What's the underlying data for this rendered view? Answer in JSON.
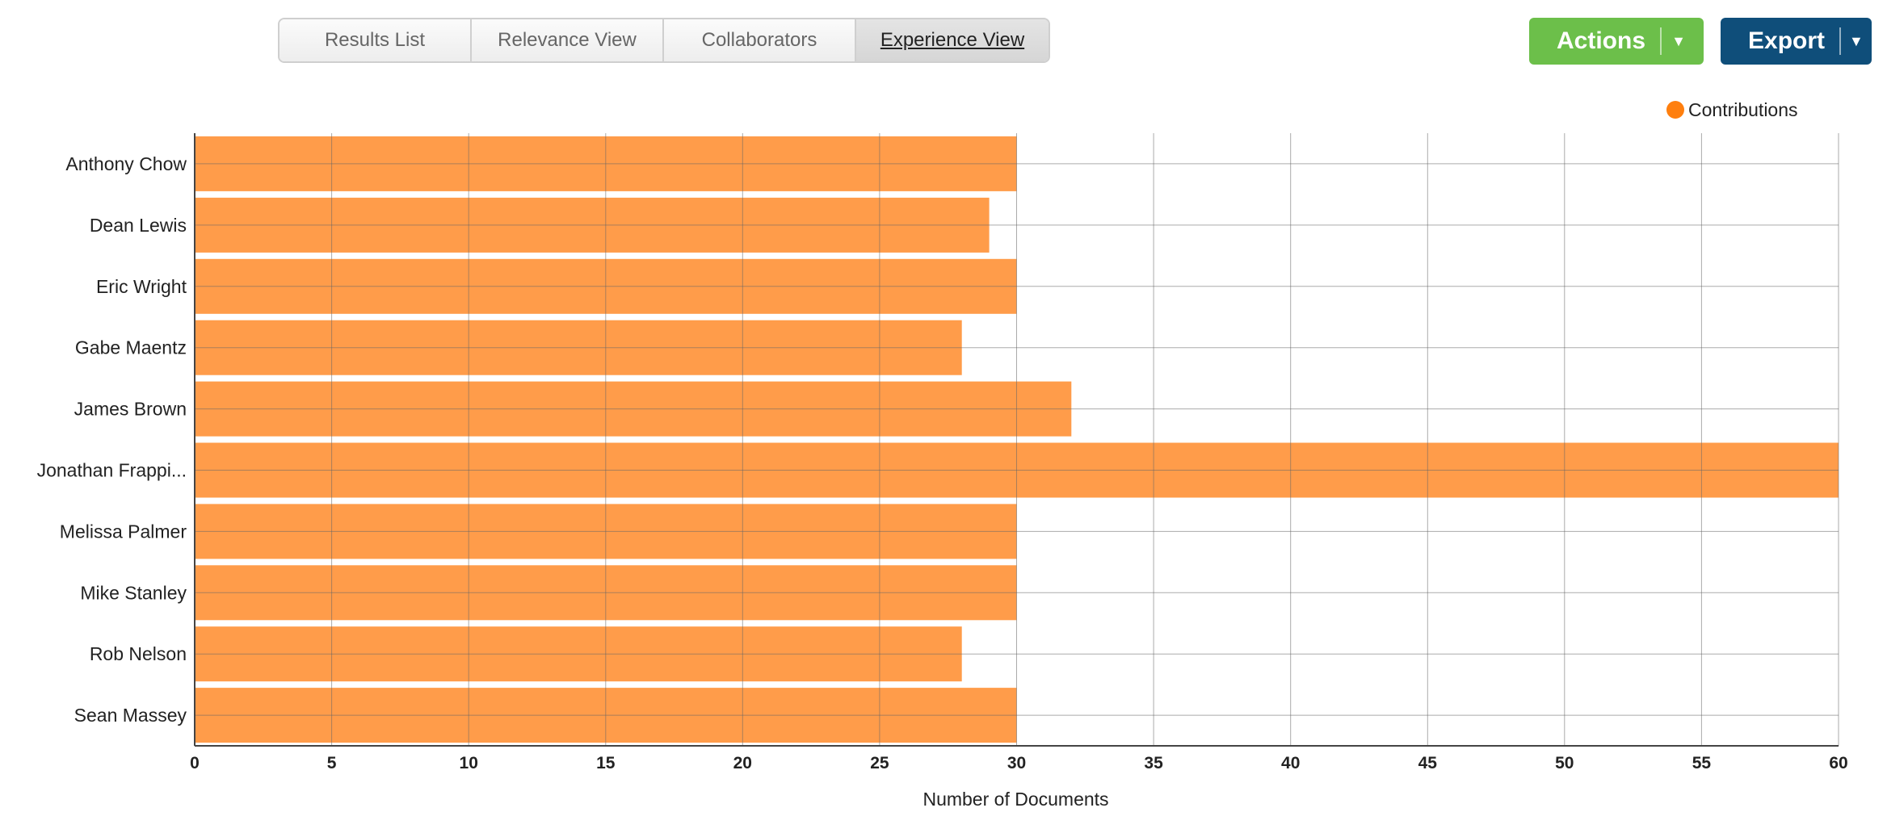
{
  "tabs": [
    {
      "label": "Results List",
      "active": false
    },
    {
      "label": "Relevance View",
      "active": false
    },
    {
      "label": "Collaborators",
      "active": false
    },
    {
      "label": "Experience View",
      "active": true
    }
  ],
  "buttons": {
    "actions": {
      "label": "Actions",
      "color": "#6cbf4a"
    },
    "export": {
      "label": "Export",
      "color": "#0f4e7a"
    }
  },
  "chart_data": {
    "type": "bar",
    "orientation": "horizontal",
    "categories": [
      "Anthony Chow",
      "Dean Lewis",
      "Eric Wright",
      "Gabe Maentz",
      "James Brown",
      "Jonathan Frappi...",
      "Melissa Palmer",
      "Mike Stanley",
      "Rob Nelson",
      "Sean Massey"
    ],
    "series": [
      {
        "name": "Contributions",
        "color": "#ff9c4a",
        "values": [
          30,
          29,
          30,
          28,
          32,
          60,
          30,
          30,
          28,
          30
        ]
      }
    ],
    "xlabel": "Number of Documents",
    "xlim": [
      0,
      60
    ],
    "xticks": [
      0,
      5,
      10,
      15,
      20,
      25,
      30,
      35,
      40,
      45,
      50,
      55,
      60
    ],
    "legend": {
      "position": "top-right",
      "marker_color": "#ff7f0e"
    },
    "grid": true
  }
}
